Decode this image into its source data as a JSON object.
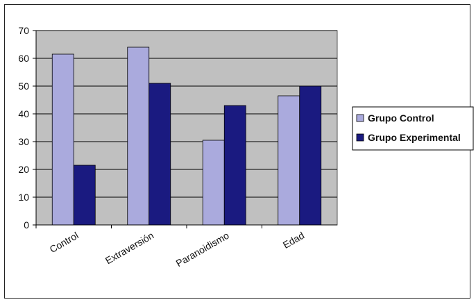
{
  "chart_data": {
    "type": "bar",
    "categories": [
      "Control",
      "Extraversión",
      "Paranoidismo",
      "Edad"
    ],
    "series": [
      {
        "name": "Grupo Control",
        "values": [
          61.5,
          64,
          30.5,
          46.5
        ]
      },
      {
        "name": "Grupo Experimental",
        "values": [
          21.5,
          51,
          43,
          50
        ]
      }
    ],
    "ylim": [
      0,
      70
    ],
    "yticks": [
      0,
      10,
      20,
      30,
      40,
      50,
      60,
      70
    ],
    "grid": true,
    "legend_position": "right",
    "colors": {
      "plot_background": "#c0c0c0",
      "series": [
        "#aaaadd",
        "#1a1a80"
      ],
      "gridline": "#000000"
    }
  }
}
